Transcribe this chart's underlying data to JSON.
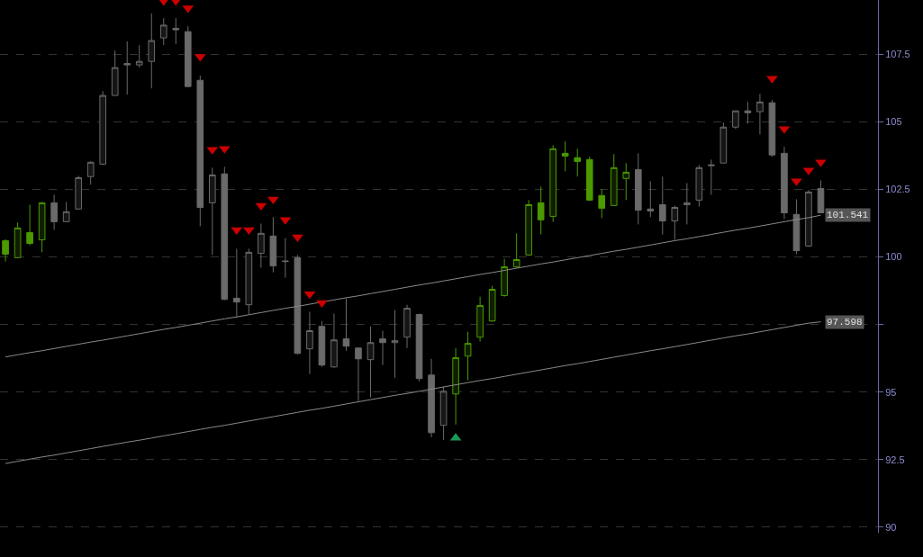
{
  "chart_data": {
    "type": "candlestick",
    "categories": [
      null,
      null,
      null,
      null,
      null,
      null,
      null,
      null,
      null,
      null,
      null,
      null,
      null,
      null,
      null,
      null,
      null,
      null,
      null,
      null,
      null,
      null,
      null,
      null,
      null,
      null,
      null,
      null,
      null,
      null,
      null,
      null,
      null,
      null,
      null,
      null,
      null,
      null,
      null,
      null,
      null,
      null,
      null,
      null,
      null,
      null,
      null,
      null,
      null,
      null,
      null,
      null,
      null,
      null,
      null,
      null,
      null,
      null,
      null,
      null,
      null,
      null,
      null,
      null,
      null,
      null,
      null,
      null
    ],
    "ohlc": [
      [
        100.6,
        100.65,
        99.83,
        100.1
      ],
      [
        99.97,
        101.27,
        99.95,
        101.07
      ],
      [
        100.9,
        101.93,
        100.43,
        100.5
      ],
      [
        100.63,
        102.03,
        100.17,
        102.0
      ],
      [
        102.0,
        102.3,
        101.0,
        101.3
      ],
      [
        101.3,
        102.03,
        101.3,
        101.67
      ],
      [
        101.77,
        103.0,
        101.77,
        102.93
      ],
      [
        102.97,
        103.53,
        102.67,
        103.5
      ],
      [
        103.43,
        106.13,
        103.4,
        105.97
      ],
      [
        105.97,
        107.63,
        105.97,
        107.0
      ],
      [
        107.15,
        107.97,
        106.0,
        107.1
      ],
      [
        107.1,
        107.83,
        107.0,
        107.23
      ],
      [
        107.23,
        109.0,
        106.23,
        108.0
      ],
      [
        108.1,
        108.83,
        107.83,
        108.57
      ],
      [
        108.45,
        108.83,
        107.87,
        108.4
      ],
      [
        108.33,
        108.53,
        106.27,
        106.3
      ],
      [
        106.53,
        106.7,
        101.13,
        101.83
      ],
      [
        102.0,
        103.3,
        100.07,
        103.03
      ],
      [
        103.07,
        103.33,
        98.4,
        98.43
      ],
      [
        98.47,
        100.3,
        97.77,
        98.33
      ],
      [
        98.23,
        100.3,
        97.87,
        100.17
      ],
      [
        100.13,
        101.23,
        99.6,
        100.87
      ],
      [
        100.77,
        101.47,
        99.43,
        99.67
      ],
      [
        99.85,
        100.7,
        99.23,
        99.83
      ],
      [
        99.97,
        100.07,
        96.4,
        96.43
      ],
      [
        96.6,
        97.97,
        95.67,
        97.27
      ],
      [
        97.43,
        97.63,
        95.93,
        96.0
      ],
      [
        95.93,
        97.9,
        95.9,
        96.93
      ],
      [
        96.97,
        98.47,
        96.53,
        96.7
      ],
      [
        96.63,
        96.63,
        94.67,
        96.23
      ],
      [
        96.2,
        97.43,
        94.8,
        96.83
      ],
      [
        96.97,
        97.27,
        96.0,
        96.83
      ],
      [
        96.83,
        98.03,
        95.53,
        96.9
      ],
      [
        97.03,
        98.23,
        96.63,
        98.1
      ],
      [
        97.87,
        97.9,
        95.4,
        95.5
      ],
      [
        95.63,
        96.23,
        93.33,
        93.5
      ],
      [
        93.77,
        95.2,
        93.23,
        95.03
      ],
      [
        94.93,
        96.63,
        93.8,
        96.27
      ],
      [
        96.33,
        97.23,
        95.43,
        96.8
      ],
      [
        97.03,
        98.53,
        96.87,
        98.2
      ],
      [
        97.63,
        98.93,
        97.6,
        98.8
      ],
      [
        98.57,
        99.93,
        98.53,
        99.63
      ],
      [
        99.63,
        100.87,
        99.6,
        99.9
      ],
      [
        100.07,
        102.1,
        100.07,
        101.93
      ],
      [
        102.0,
        102.6,
        100.83,
        101.37
      ],
      [
        101.5,
        104.13,
        101.3,
        104.0
      ],
      [
        103.83,
        104.27,
        103.17,
        103.73
      ],
      [
        103.67,
        104.0,
        102.97,
        103.53
      ],
      [
        103.6,
        103.7,
        102.07,
        102.1
      ],
      [
        102.27,
        102.5,
        101.43,
        101.8
      ],
      [
        101.9,
        103.8,
        101.9,
        103.3
      ],
      [
        102.9,
        103.47,
        102.1,
        103.13
      ],
      [
        103.23,
        103.83,
        101.2,
        101.73
      ],
      [
        101.77,
        102.8,
        101.47,
        101.7
      ],
      [
        101.93,
        102.97,
        100.83,
        101.33
      ],
      [
        101.33,
        101.9,
        100.63,
        101.83
      ],
      [
        101.93,
        102.73,
        101.2,
        102.0
      ],
      [
        102.1,
        103.4,
        101.87,
        103.3
      ],
      [
        103.37,
        103.6,
        102.3,
        103.4
      ],
      [
        103.47,
        104.97,
        103.47,
        104.8
      ],
      [
        104.8,
        105.4,
        104.73,
        105.4
      ],
      [
        105.4,
        105.73,
        104.93,
        105.33
      ],
      [
        105.37,
        106.03,
        104.53,
        105.73
      ],
      [
        105.7,
        105.8,
        103.7,
        103.77
      ],
      [
        103.83,
        104.07,
        101.4,
        101.63
      ],
      [
        101.57,
        102.13,
        100.1,
        100.23
      ],
      [
        100.4,
        102.47,
        100.37,
        102.4
      ],
      [
        102.53,
        102.83,
        101.63,
        101.63
      ]
    ],
    "colors": [
      "#4c9a00",
      "#4c9a00",
      "#4c9a00",
      "#4c9a00",
      "#6a6a6a",
      "#6a6a6a",
      "#6a6a6a",
      "#6a6a6a",
      "#6a6a6a",
      "#6a6a6a",
      "#6a6a6a",
      "#6a6a6a",
      "#6a6a6a",
      "#6a6a6a",
      "#6a6a6a",
      "#6a6a6a",
      "#6a6a6a",
      "#6a6a6a",
      "#6a6a6a",
      "#6a6a6a",
      "#6a6a6a",
      "#6a6a6a",
      "#6a6a6a",
      "#6a6a6a",
      "#6a6a6a",
      "#6a6a6a",
      "#6a6a6a",
      "#6a6a6a",
      "#6a6a6a",
      "#6a6a6a",
      "#6a6a6a",
      "#6a6a6a",
      "#6a6a6a",
      "#6a6a6a",
      "#6a6a6a",
      "#6a6a6a",
      "#6a6a6a",
      "#4c9a00",
      "#4c9a00",
      "#4c9a00",
      "#4c9a00",
      "#4c9a00",
      "#4c9a00",
      "#4c9a00",
      "#4c9a00",
      "#4c9a00",
      "#4c9a00",
      "#4c9a00",
      "#4c9a00",
      "#4c9a00",
      "#4c9a00",
      "#4c9a00",
      "#6a6a6a",
      "#6a6a6a",
      "#6a6a6a",
      "#6a6a6a",
      "#6a6a6a",
      "#6a6a6a",
      "#6a6a6a",
      "#6a6a6a",
      "#6a6a6a",
      "#6a6a6a",
      "#6a6a6a",
      "#6a6a6a",
      "#6a6a6a",
      "#6a6a6a",
      "#6a6a6a",
      "#6a6a6a"
    ],
    "ylim": [
      89.8,
      109.5
    ],
    "yticks": [
      90,
      92.5,
      95,
      {
        "value": 97.5,
        "label": null
      },
      100,
      102.5,
      105,
      107.5
    ],
    "grid": "y",
    "tick_labels": "y",
    "series": [
      {
        "type": "scatter",
        "marker": "triangle",
        "color": "#cc0000",
        "values": [
          null,
          null,
          null,
          null,
          null,
          null,
          null,
          null,
          null,
          null,
          null,
          null,
          null,
          109.47,
          109.47,
          109.2,
          107.4,
          103.97,
          104.0,
          101.0,
          101.0,
          101.9,
          102.13,
          101.37,
          100.73,
          98.63,
          98.3,
          null,
          null,
          null,
          null,
          null,
          null,
          null,
          null,
          null,
          null,
          null,
          null,
          null,
          null,
          null,
          null,
          null,
          null,
          null,
          null,
          null,
          null,
          null,
          null,
          null,
          null,
          null,
          null,
          null,
          null,
          null,
          null,
          null,
          null,
          null,
          null,
          106.6,
          104.73,
          102.8,
          103.2,
          103.5
        ]
      },
      {
        "type": "scatter",
        "marker": "triangle",
        "color": "#1a9a5a",
        "values": [
          null,
          null,
          null,
          null,
          null,
          null,
          null,
          null,
          null,
          null,
          null,
          null,
          null,
          null,
          null,
          null,
          null,
          null,
          null,
          null,
          null,
          null,
          null,
          null,
          null,
          null,
          null,
          null,
          null,
          null,
          null,
          null,
          null,
          null,
          null,
          null,
          null,
          93.3,
          null,
          null,
          null,
          null,
          null,
          null,
          null,
          null,
          null,
          null,
          null,
          null,
          null,
          null,
          null,
          null,
          null,
          null,
          null,
          null,
          null,
          null,
          null,
          null,
          null,
          null,
          null,
          null,
          null,
          null
        ]
      },
      {
        "type": "line",
        "color": "#8a8a8a",
        "values": [
          96.3,
          96.38,
          96.46,
          96.53,
          96.61,
          96.69,
          96.77,
          96.85,
          96.92,
          97.0,
          97.08,
          97.16,
          97.24,
          97.32,
          97.39,
          97.47,
          97.55,
          97.63,
          97.71,
          97.78,
          97.86,
          97.94,
          98.02,
          98.1,
          98.17,
          98.25,
          98.33,
          98.41,
          98.49,
          98.56,
          98.64,
          98.72,
          98.8,
          98.88,
          98.96,
          99.03,
          99.11,
          99.19,
          99.27,
          99.35,
          99.42,
          99.5,
          99.58,
          99.66,
          99.74,
          99.81,
          99.89,
          99.97,
          100.05,
          100.13,
          100.21,
          100.28,
          100.36,
          100.44,
          100.52,
          100.6,
          100.67,
          100.75,
          100.83,
          100.91,
          100.99,
          101.06,
          101.14,
          101.22,
          101.3,
          101.38,
          101.45,
          101.541
        ],
        "value_labels": [
          null,
          null,
          null,
          null,
          null,
          null,
          null,
          null,
          null,
          null,
          null,
          null,
          null,
          null,
          null,
          null,
          null,
          null,
          null,
          null,
          null,
          null,
          null,
          null,
          null,
          null,
          null,
          null,
          null,
          null,
          null,
          null,
          null,
          null,
          null,
          null,
          null,
          null,
          null,
          null,
          null,
          null,
          null,
          null,
          null,
          null,
          null,
          null,
          null,
          null,
          null,
          null,
          null,
          null,
          null,
          null,
          null,
          null,
          null,
          null,
          null,
          null,
          null,
          null,
          null,
          null,
          null,
          "101.541"
        ]
      },
      {
        "type": "line",
        "color": "#8a8a8a",
        "values": [
          92.36,
          92.44,
          92.52,
          92.6,
          92.67,
          92.75,
          92.83,
          92.91,
          92.99,
          93.07,
          93.15,
          93.22,
          93.3,
          93.38,
          93.46,
          93.54,
          93.62,
          93.7,
          93.77,
          93.85,
          93.93,
          94.01,
          94.09,
          94.17,
          94.25,
          94.33,
          94.4,
          94.48,
          94.56,
          94.64,
          94.72,
          94.8,
          94.88,
          94.95,
          95.03,
          95.11,
          95.19,
          95.27,
          95.35,
          95.43,
          95.5,
          95.58,
          95.66,
          95.74,
          95.82,
          95.9,
          95.98,
          96.05,
          96.13,
          96.21,
          96.29,
          96.37,
          96.45,
          96.53,
          96.6,
          96.68,
          96.76,
          96.84,
          96.92,
          97.0,
          97.08,
          97.15,
          97.23,
          97.31,
          97.39,
          97.47,
          97.55,
          97.598
        ],
        "value_labels": [
          null,
          null,
          null,
          null,
          null,
          null,
          null,
          null,
          null,
          null,
          null,
          null,
          null,
          null,
          null,
          null,
          null,
          null,
          null,
          null,
          null,
          null,
          null,
          null,
          null,
          null,
          null,
          null,
          null,
          null,
          null,
          null,
          null,
          null,
          null,
          null,
          null,
          null,
          null,
          null,
          null,
          null,
          null,
          null,
          null,
          null,
          null,
          null,
          null,
          null,
          null,
          null,
          null,
          null,
          null,
          null,
          null,
          null,
          null,
          null,
          null,
          null,
          null,
          null,
          null,
          null,
          null,
          "97.598"
        ]
      }
    ]
  }
}
